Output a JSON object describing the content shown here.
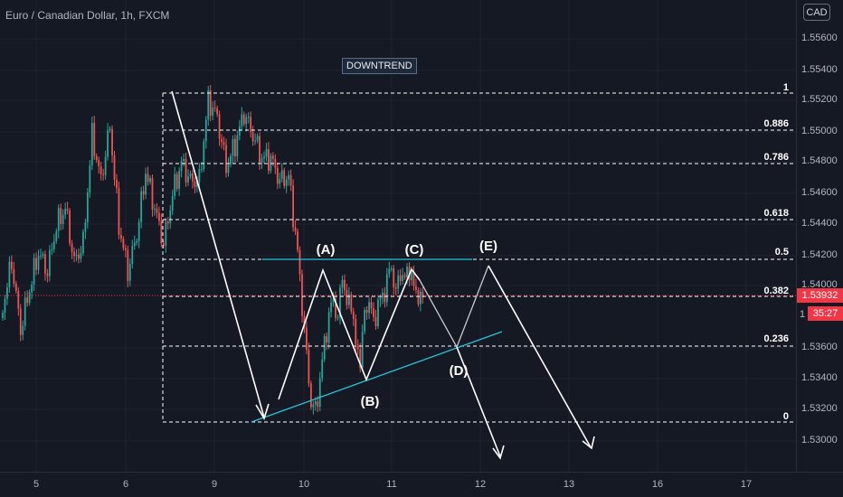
{
  "header": {
    "title": "Euro / Canadian Dollar, 1h, FXCM"
  },
  "currency_button": {
    "label": "CAD"
  },
  "annotation": {
    "label": "DOWNTREND"
  },
  "price_axis": {
    "labels": [
      "1.55600",
      "1.55400",
      "1.55200",
      "1.55000",
      "1.54800",
      "1.54600",
      "1.54400",
      "1.54200",
      "1.54000",
      "1.53600",
      "1.53400",
      "1.53200",
      "1.53000"
    ]
  },
  "time_axis": {
    "labels": [
      "5",
      "6",
      "9",
      "10",
      "11",
      "12",
      "13",
      "16",
      "17"
    ]
  },
  "fib_levels": [
    "1",
    "0.886",
    "0.786",
    "0.618",
    "0.5",
    "0.382",
    "0.236",
    "0"
  ],
  "wave_labels": [
    "(A)",
    "(B)",
    "(C)",
    "(D)",
    "(E)"
  ],
  "current_price": {
    "value": "1.53932",
    "countdown": "35:27",
    "prefix": "1"
  },
  "colors": {
    "up": "#26a69a",
    "down": "#ef5350",
    "background": "#151924",
    "trendline": "#26c6da",
    "badge": "#f23645"
  }
}
